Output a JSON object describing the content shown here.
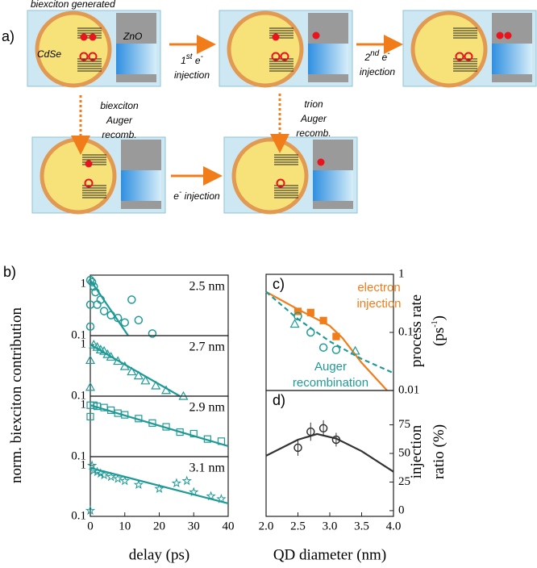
{
  "diagram": {
    "panel_label": "a)",
    "title": "biexciton generated",
    "cdse": "CdSe",
    "zno": "ZnO",
    "first_injection": {
      "line1": [
        "1",
        "st",
        " e",
        "-"
      ],
      "line2": "injection"
    },
    "second_injection": {
      "line1": [
        "2",
        "nd",
        " e",
        "-"
      ],
      "line2": "injection"
    },
    "biexciton_auger": [
      "biexciton",
      "Auger",
      "recomb."
    ],
    "trion_auger": [
      "trion",
      "Auger",
      "recomb."
    ],
    "e_injection": [
      "e",
      "-",
      " injection"
    ]
  },
  "chart_data": [
    {
      "type": "scatter",
      "panel_label": "b)",
      "ylabel": [
        [
          "norm. biexciton contribution"
        ]
      ],
      "annotation": "2.5 nm",
      "xlim": [
        0,
        40
      ],
      "ylim": [
        0.1,
        1.5
      ],
      "log_y": true,
      "yticks": [
        0.1,
        1
      ],
      "color": "#1f9a96",
      "marker": "circle",
      "x": [
        0,
        0,
        0,
        0.5,
        1,
        1.5,
        2,
        3,
        4,
        6,
        8,
        10,
        12,
        14,
        18
      ],
      "values": [
        1.2,
        0.4,
        0.15,
        1.1,
        0.9,
        0.7,
        0.4,
        0.5,
        0.3,
        0.25,
        0.22,
        0.18,
        0.5,
        0.2,
        0.11
      ],
      "fit": {
        "x": [
          0,
          11
        ],
        "values": [
          1.2,
          0.1
        ]
      }
    },
    {
      "type": "scatter",
      "annotation": "2.7 nm",
      "xlim": [
        0,
        40
      ],
      "ylim": [
        0.1,
        1.5
      ],
      "log_y": true,
      "yticks": [
        0.1,
        1
      ],
      "color": "#1f9a96",
      "marker": "triangle",
      "x": [
        0,
        0,
        1,
        2,
        3,
        4,
        5,
        6,
        8,
        10,
        12,
        14,
        16,
        19,
        22,
        27
      ],
      "values": [
        0.15,
        0.5,
        1.0,
        0.9,
        0.8,
        0.75,
        0.65,
        0.58,
        0.48,
        0.38,
        0.3,
        0.25,
        0.2,
        0.16,
        0.13,
        0.1
      ],
      "fit": {
        "x": [
          0,
          26
        ],
        "values": [
          1.0,
          0.1
        ]
      }
    },
    {
      "type": "scatter",
      "annotation": "2.9 nm",
      "xlim": [
        0,
        40
      ],
      "ylim": [
        0.1,
        1.5
      ],
      "log_y": true,
      "yticks": [
        0.1,
        1
      ],
      "color": "#1f9a96",
      "marker": "square",
      "x": [
        0,
        0,
        1,
        2,
        4,
        6,
        8,
        10,
        14,
        18,
        22,
        26,
        30,
        34,
        38
      ],
      "values": [
        0.6,
        1.0,
        1.0,
        0.95,
        0.9,
        0.8,
        0.7,
        0.65,
        0.55,
        0.45,
        0.38,
        0.3,
        0.28,
        0.22,
        0.2
      ],
      "fit": {
        "x": [
          0,
          40
        ],
        "values": [
          1.0,
          0.16
        ]
      }
    },
    {
      "type": "scatter",
      "annotation": "3.1 nm",
      "xlabel": "delay (ps)",
      "xlim": [
        0,
        40
      ],
      "ylim": [
        0.1,
        1.5
      ],
      "log_y": true,
      "yticks": [
        0.1,
        1
      ],
      "xticks": [
        0,
        10,
        20,
        30,
        40
      ],
      "color": "#1f9a96",
      "marker": "star",
      "x": [
        0,
        0.5,
        1,
        2,
        3,
        4,
        6,
        8,
        10,
        14,
        20,
        25,
        28,
        30,
        35,
        38
      ],
      "values": [
        0.13,
        1.0,
        0.8,
        0.75,
        0.7,
        0.65,
        0.6,
        0.55,
        0.5,
        0.42,
        0.35,
        0.45,
        0.5,
        0.3,
        0.25,
        0.22
      ],
      "fit": {
        "x": [
          0,
          40
        ],
        "values": [
          0.9,
          0.18
        ]
      }
    },
    {
      "type": "scatter",
      "panel_label": "c)",
      "ylabel": [
        [
          "process rate"
        ],
        [
          "(ps",
          "-1",
          ")"
        ]
      ],
      "xlim": [
        2,
        4
      ],
      "ylim": [
        0.01,
        1
      ],
      "log_y": true,
      "yticks": [
        0.01,
        0.1,
        1
      ],
      "series": [
        {
          "marker": "square",
          "color": "#f07d1a",
          "x": [
            2.5,
            2.7,
            2.9,
            3.1
          ],
          "values": [
            0.23,
            0.22,
            0.16,
            0.085
          ]
        },
        {
          "marker": "circle",
          "color": "#1f9a96",
          "x": [
            2.5,
            2.7,
            2.9,
            3.1
          ],
          "values": [
            0.19,
            0.1,
            0.055,
            0.05
          ]
        },
        {
          "marker": "triangle",
          "color": "#1f9a96",
          "x": [
            2.45,
            3.4
          ],
          "values": [
            0.14,
            0.048
          ]
        }
      ],
      "lines": [
        {
          "color": "#f07d1a",
          "dashed": false,
          "x": [
            2.0,
            2.5,
            3.0,
            3.2,
            3.5,
            3.9
          ],
          "values": [
            0.5,
            0.25,
            0.13,
            0.08,
            0.03,
            0.01
          ]
        },
        {
          "color": "#1f9a96",
          "dashed": true,
          "x": [
            2.0,
            2.5,
            3.0,
            3.5,
            4.0
          ],
          "values": [
            0.5,
            0.17,
            0.07,
            0.035,
            0.02
          ]
        }
      ],
      "annotations": [
        {
          "lines": [
            "electron",
            "injection"
          ],
          "color": "#f07d1a"
        },
        {
          "lines": [
            "Auger",
            "recombination"
          ],
          "color": "#1f9a96"
        }
      ]
    },
    {
      "type": "scatter",
      "panel_label": "d)",
      "ylabel": [
        [
          "injection"
        ],
        [
          "ratio (%)"
        ]
      ],
      "xlabel": "QD diameter (nm)",
      "xlim": [
        2,
        4
      ],
      "ylim": [
        -5,
        105
      ],
      "yticks": [
        0,
        25,
        50,
        75
      ],
      "xticks": [
        {
          "value": 2,
          "label": "2.0"
        },
        {
          "value": 2.5,
          "label": "2.5"
        },
        {
          "value": 3,
          "label": "3.0"
        },
        {
          "value": 3.5,
          "label": "3.5"
        },
        {
          "value": 4,
          "label": "4.0"
        }
      ],
      "series": [
        {
          "marker": "circle",
          "color": "#333333",
          "x": [
            2.5,
            2.7,
            2.9,
            3.1
          ],
          "values": [
            55,
            69,
            72,
            62
          ],
          "errors": [
            7,
            8,
            7,
            6
          ]
        }
      ],
      "lines": [
        {
          "color": "#333333",
          "dashed": false,
          "x": [
            2.0,
            2.5,
            2.8,
            3.1,
            3.5,
            4.0
          ],
          "values": [
            48,
            62,
            67,
            63,
            52,
            34
          ]
        }
      ]
    }
  ]
}
